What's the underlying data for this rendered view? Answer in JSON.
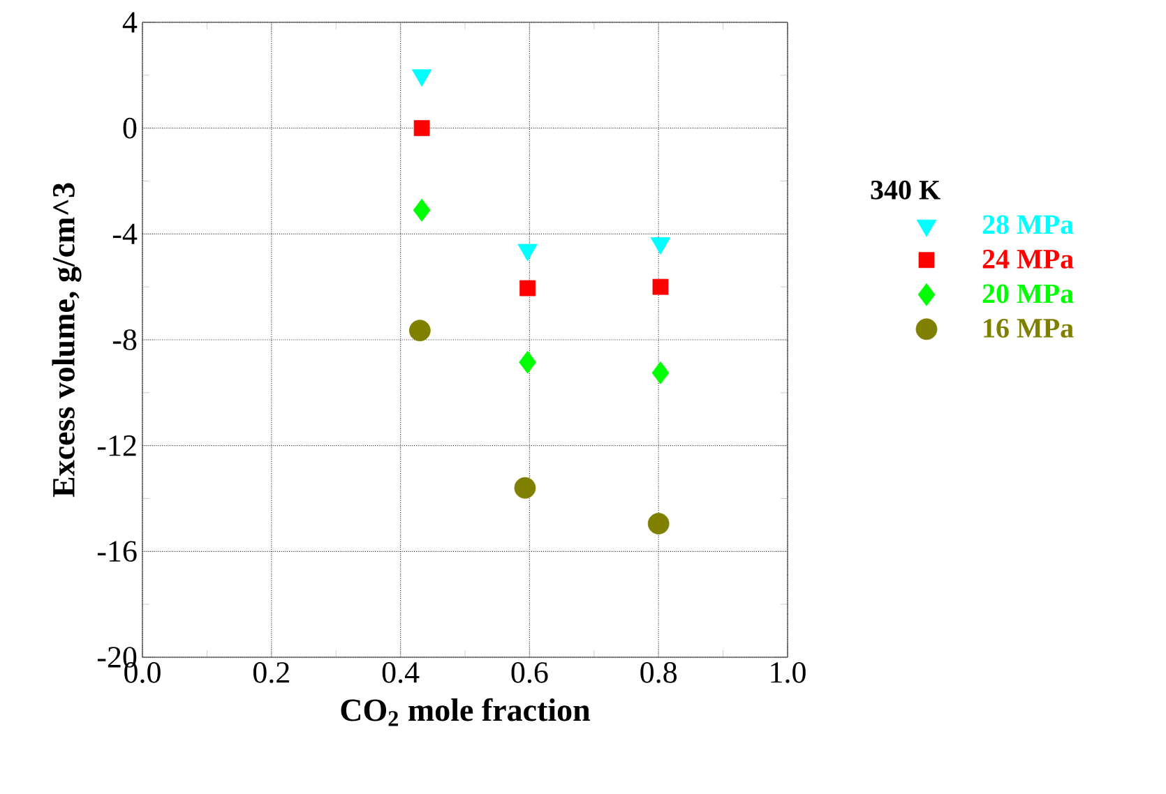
{
  "chart_data": {
    "type": "scatter",
    "xlabel": "CO$_{2}$ mole fraction",
    "ylabel": "Excess volume, g/cm^3",
    "legend_title": "340 K",
    "legend": "right",
    "grid": true,
    "xlim": [
      0,
      1
    ],
    "ylim": [
      -20,
      4
    ],
    "xticks": [
      {
        "value": 0,
        "label": "0.0"
      },
      0.2,
      0.4,
      0.6,
      0.8,
      {
        "value": 1,
        "label": "1.0"
      }
    ],
    "yticks": [
      -20,
      -16,
      -12,
      -8,
      -4,
      0,
      4
    ],
    "series": [
      {
        "name": "28 MPa",
        "color": "#00ffff",
        "marker": "triangle",
        "x": [
          0.433,
          0.597,
          0.803
        ],
        "values": [
          2.0,
          -4.6,
          -4.35
        ]
      },
      {
        "name": "24 MPa",
        "color": "#ff0000",
        "marker": "square",
        "x": [
          0.433,
          0.597,
          0.803
        ],
        "values": [
          0.0,
          -6.05,
          -6.0
        ]
      },
      {
        "name": "20 MPa",
        "color": "#00ff00",
        "marker": "diamond",
        "x": [
          0.433,
          0.597,
          0.803
        ],
        "values": [
          -3.1,
          -8.85,
          -9.25
        ]
      },
      {
        "name": "16 MPa",
        "color": "#808000",
        "marker": "circle",
        "x": [
          0.43,
          0.593,
          0.8
        ],
        "values": [
          -7.65,
          -13.6,
          -14.95
        ]
      }
    ]
  }
}
